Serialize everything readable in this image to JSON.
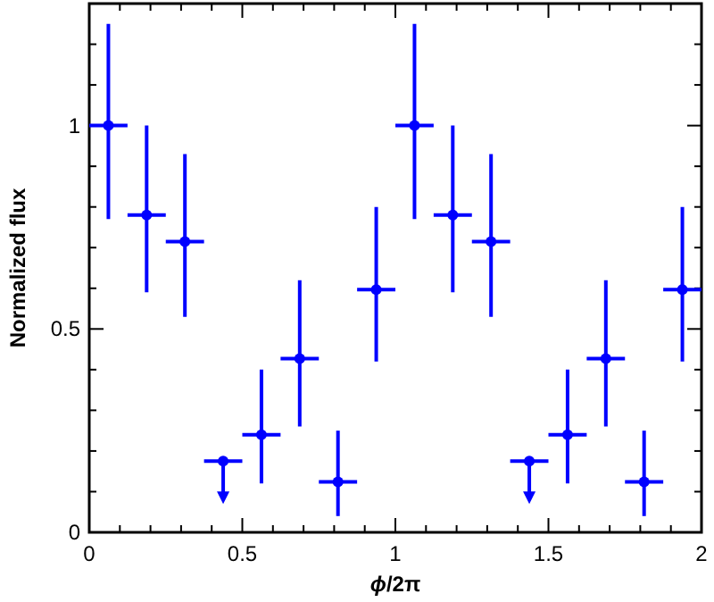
{
  "chart_data": {
    "type": "scatter",
    "xlabel": "ϕ/2π",
    "ylabel": "Normalized flux",
    "marker": "circle",
    "xlim": [
      0,
      2
    ],
    "ylim": [
      0,
      1.3
    ],
    "xticks": [
      0,
      {
        "value": 0.1,
        "label": null
      },
      {
        "value": 0.2,
        "label": null
      },
      {
        "value": 0.3,
        "label": null
      },
      {
        "value": 0.4,
        "label": null
      },
      0.5,
      {
        "value": 0.6,
        "label": null
      },
      {
        "value": 0.7,
        "label": null
      },
      {
        "value": 0.8,
        "label": null
      },
      {
        "value": 0.9,
        "label": null
      },
      1,
      {
        "value": 1.1,
        "label": null
      },
      {
        "value": 1.2,
        "label": null
      },
      {
        "value": 1.3,
        "label": null
      },
      {
        "value": 1.4,
        "label": null
      },
      1.5,
      {
        "value": 1.6,
        "label": null
      },
      {
        "value": 1.7,
        "label": null
      },
      {
        "value": 1.8,
        "label": null
      },
      {
        "value": 1.9,
        "label": null
      },
      2
    ],
    "yticks": [
      0,
      {
        "value": 0.1,
        "label": null
      },
      {
        "value": 0.2,
        "label": null
      },
      {
        "value": 0.3,
        "label": null
      },
      {
        "value": 0.4,
        "label": null
      },
      0.5,
      {
        "value": 0.6,
        "label": null
      },
      {
        "value": 0.7,
        "label": null
      },
      {
        "value": 0.8,
        "label": null
      },
      {
        "value": 0.9,
        "label": null
      },
      1,
      {
        "value": 1.1,
        "label": null
      },
      {
        "value": 1.2,
        "label": null
      }
    ],
    "series": [
      {
        "color": "#0000ff",
        "x": [
          0.0625,
          0.1875,
          0.3125,
          0.4375,
          0.5625,
          0.6875,
          0.8125,
          0.9375,
          1.0625,
          1.1875,
          1.3125,
          1.4375,
          1.5625,
          1.6875,
          1.8125,
          1.9375
        ],
        "values": [
          1.0,
          0.78,
          0.715,
          0.175,
          0.24,
          0.427,
          0.124,
          0.597,
          1.0,
          0.78,
          0.715,
          0.175,
          0.24,
          0.427,
          0.124,
          0.597
        ],
        "errors": [
          [
            0.77,
            1.25
          ],
          [
            0.59,
            1.0
          ],
          [
            0.53,
            0.93
          ],
          null,
          [
            0.12,
            0.4
          ],
          [
            0.26,
            0.62
          ],
          [
            0.04,
            0.25
          ],
          [
            0.42,
            0.8
          ],
          [
            0.77,
            1.25
          ],
          [
            0.59,
            1.0
          ],
          [
            0.53,
            0.93
          ],
          null,
          [
            0.12,
            0.4
          ],
          [
            0.26,
            0.62
          ],
          [
            0.04,
            0.25
          ],
          [
            0.42,
            0.8
          ]
        ],
        "xerrors": [
          0.0625,
          0.0625,
          0.0625,
          0.0625,
          0.0625,
          0.0625,
          0.0625,
          0.0625,
          0.0625,
          0.0625,
          0.0625,
          0.0625,
          0.0625,
          0.0625,
          0.0625,
          0.0625
        ]
      }
    ]
  }
}
